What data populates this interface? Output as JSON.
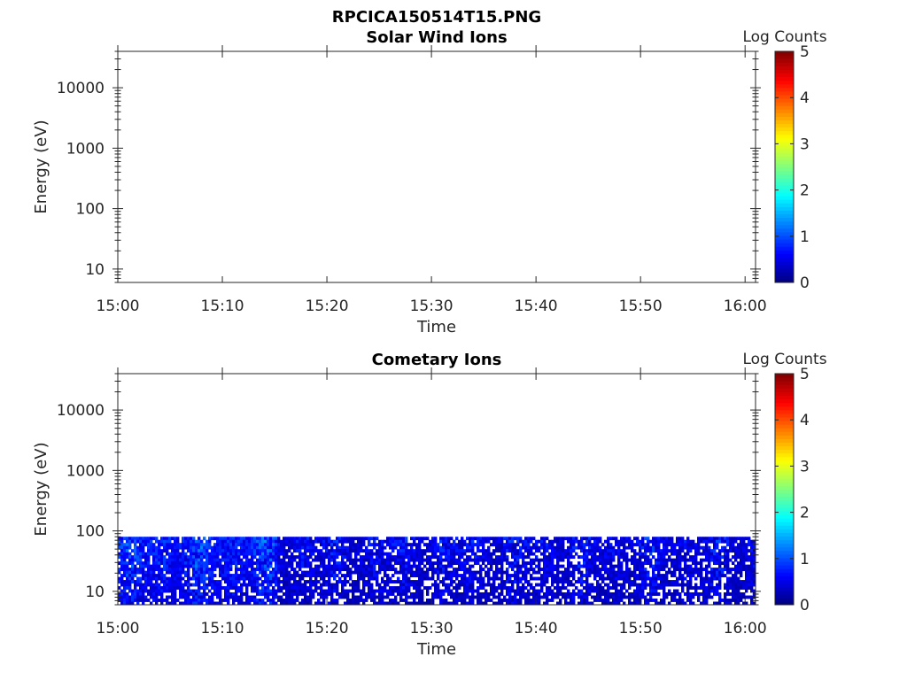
{
  "figure_title": "RPCICA150514T15.PNG",
  "chart_data": [
    {
      "type": "heatmap",
      "title": "Solar Wind Ions",
      "xlabel": "Time",
      "ylabel": "Energy (eV)",
      "x_ticks": [
        "15:00",
        "15:10",
        "15:20",
        "15:30",
        "15:40",
        "15:50",
        "16:00"
      ],
      "y_ticks": [
        "10",
        "100",
        "1000",
        "10000"
      ],
      "y_scale": "log",
      "x_range": [
        "15:00",
        "16:01"
      ],
      "y_range": [
        6,
        40000
      ],
      "colorbar": {
        "label": "Log Counts",
        "ticks": [
          "0",
          "1",
          "2",
          "3",
          "4",
          "5"
        ],
        "range": [
          0,
          5
        ],
        "colormap": "jet"
      },
      "data_energy_range": null,
      "note_empty": true
    },
    {
      "type": "heatmap",
      "title": "Cometary Ions",
      "xlabel": "Time",
      "ylabel": "Energy (eV)",
      "x_ticks": [
        "15:00",
        "15:10",
        "15:20",
        "15:30",
        "15:40",
        "15:50",
        "16:00"
      ],
      "y_ticks": [
        "10",
        "100",
        "1000",
        "10000"
      ],
      "y_scale": "log",
      "x_range": [
        "15:00",
        "16:01"
      ],
      "y_range": [
        6,
        40000
      ],
      "colorbar": {
        "label": "Log Counts",
        "ticks": [
          "0",
          "1",
          "2",
          "3",
          "4",
          "5"
        ],
        "range": [
          0,
          5
        ],
        "colormap": "jet"
      },
      "data_energy_range": [
        6,
        80
      ],
      "typical_log_counts": [
        0,
        1.6
      ]
    }
  ]
}
